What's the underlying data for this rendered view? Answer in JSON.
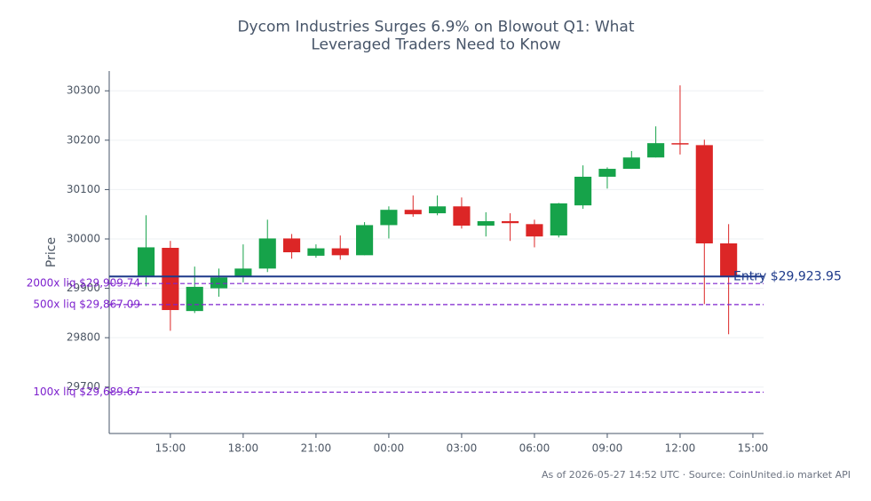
{
  "chart_data": {
    "type": "candlestick",
    "title": "Dycom Industries Surges 6.9% on Blowout Q1: What\nLeveraged Traders Need to Know",
    "y_label": "Price",
    "footer": "As of 2026-05-27 14:52 UTC · Source: CoinUnited.io market API",
    "x": [
      14,
      15,
      16,
      17,
      18,
      19,
      20,
      21,
      22,
      23,
      24,
      25,
      26,
      27,
      28,
      29,
      30,
      31,
      32,
      33,
      34,
      35,
      36,
      37,
      38
    ],
    "open": [
      29924,
      29982,
      29854,
      29900,
      29924,
      29940,
      30001,
      29966,
      29981,
      29967,
      30028,
      30059,
      30052,
      30066,
      30027,
      30036,
      30030,
      30007,
      30068,
      30126,
      30142,
      30165,
      30194,
      30190,
      29991
    ],
    "high": [
      30048,
      29996,
      29944,
      29940,
      29989,
      30039,
      30010,
      29989,
      30007,
      30034,
      30066,
      30088,
      30088,
      30084,
      30054,
      30052,
      30039,
      30073,
      30149,
      30145,
      30178,
      30228,
      30311,
      30201,
      30030
    ],
    "low": [
      29904,
      29814,
      29850,
      29883,
      29912,
      29933,
      29960,
      29962,
      29958,
      29967,
      30001,
      30045,
      30048,
      30021,
      30005,
      29996,
      29983,
      30003,
      30061,
      30102,
      30142,
      30165,
      30171,
      29868,
      29807
    ],
    "close": [
      29983,
      29856,
      29903,
      29922,
      29940,
      30001,
      29973,
      29981,
      29967,
      30028,
      30059,
      30050,
      30066,
      30027,
      30036,
      30032,
      30005,
      30072,
      30126,
      30142,
      30165,
      30194,
      30192,
      29991,
      29924
    ],
    "up_color": "#16a34a",
    "down_color": "#dc2626",
    "xlim": [
      12.48,
      39.44
    ],
    "xticks": [
      {
        "value": 15,
        "label": "15:00"
      },
      {
        "value": 18,
        "label": "18:00"
      },
      {
        "value": 21,
        "label": "21:00"
      },
      {
        "value": 24,
        "label": "00:00"
      },
      {
        "value": 27,
        "label": "03:00"
      },
      {
        "value": 30,
        "label": "06:00"
      },
      {
        "value": 33,
        "label": "09:00"
      },
      {
        "value": 36,
        "label": "12:00"
      },
      {
        "value": 39,
        "label": "15:00"
      }
    ],
    "ylim": [
      29606,
      30340
    ],
    "yticks": [
      29700,
      29800,
      29900,
      30000,
      30100,
      30200,
      30300
    ],
    "grid": true,
    "lines": [
      {
        "label": "Entry $29,923.95",
        "value": 29923.95,
        "color": "#1e3a8a",
        "style": "solid"
      },
      {
        "label": "2000x liq $29,909.74",
        "value": 29909.74,
        "color": "#7e22ce",
        "style": "dashed"
      },
      {
        "label": "500x liq $29,867.09",
        "value": 29867.09,
        "color": "#7e22ce",
        "style": "dashed"
      },
      {
        "label": "100x liq $29,689.67",
        "value": 29689.67,
        "color": "#7e22ce",
        "style": "dashed"
      }
    ]
  }
}
